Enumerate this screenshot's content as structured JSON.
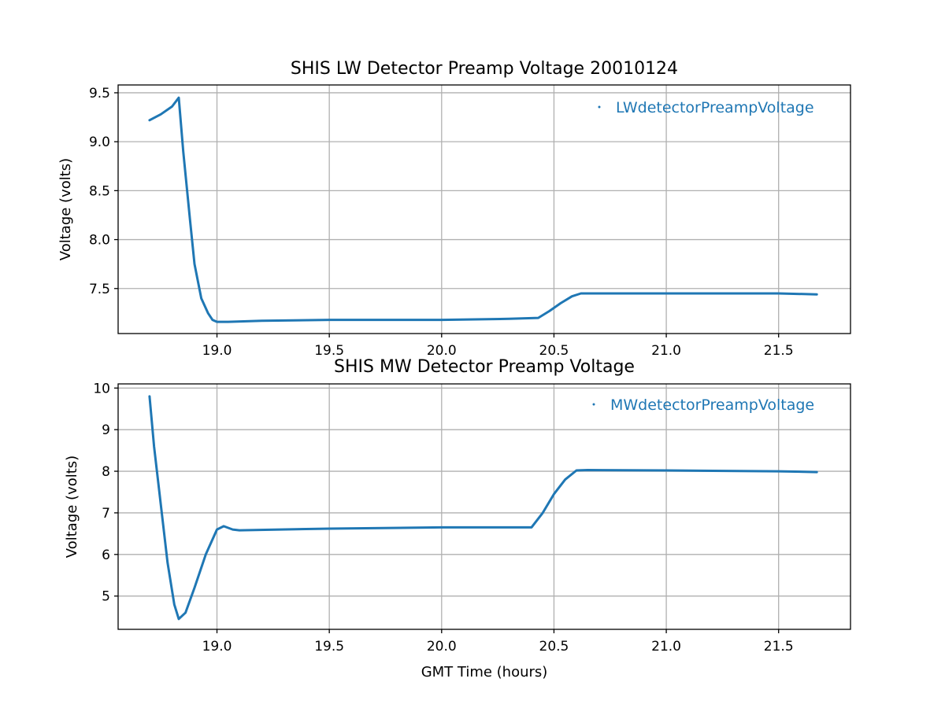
{
  "chart_data": [
    {
      "type": "scatter",
      "title": "SHIS LW Detector Preamp Voltage 20010124",
      "xlabel": "",
      "ylabel": "Voltage (volts)",
      "xlim": [
        18.56,
        21.82
      ],
      "ylim": [
        7.04,
        9.58
      ],
      "xticks": [
        19.0,
        19.5,
        20.0,
        20.5,
        21.0,
        21.5
      ],
      "xtick_labels": [
        "19.0",
        "19.5",
        "20.0",
        "20.5",
        "21.0",
        "21.5"
      ],
      "yticks": [
        7.5,
        8.0,
        8.5,
        9.0,
        9.5
      ],
      "ytick_labels": [
        "7.5",
        "8.0",
        "8.5",
        "9.0",
        "9.5"
      ],
      "grid": true,
      "legend_position": "upper-right",
      "series": [
        {
          "name": "LWdetectorPreampVoltage",
          "color": "#1f77b4",
          "x": [
            18.7,
            18.75,
            18.8,
            18.83,
            18.85,
            18.88,
            18.9,
            18.93,
            18.96,
            18.98,
            19.0,
            19.05,
            19.2,
            19.5,
            20.0,
            20.3,
            20.43,
            20.48,
            20.53,
            20.58,
            20.62,
            21.0,
            21.5,
            21.67
          ],
          "y": [
            9.22,
            9.28,
            9.36,
            9.45,
            8.9,
            8.2,
            7.75,
            7.4,
            7.25,
            7.18,
            7.16,
            7.16,
            7.17,
            7.18,
            7.18,
            7.19,
            7.2,
            7.27,
            7.35,
            7.42,
            7.45,
            7.45,
            7.45,
            7.44
          ]
        }
      ]
    },
    {
      "type": "scatter",
      "title": "SHIS MW Detector Preamp Voltage",
      "xlabel": "GMT Time (hours)",
      "ylabel": "Voltage (volts)",
      "xlim": [
        18.56,
        21.82
      ],
      "ylim": [
        4.2,
        10.1
      ],
      "xticks": [
        19.0,
        19.5,
        20.0,
        20.5,
        21.0,
        21.5
      ],
      "xtick_labels": [
        "19.0",
        "19.5",
        "20.0",
        "20.5",
        "21.0",
        "21.5"
      ],
      "yticks": [
        5,
        6,
        7,
        8,
        9,
        10
      ],
      "ytick_labels": [
        "5",
        "6",
        "7",
        "8",
        "9",
        "10"
      ],
      "grid": true,
      "legend_position": "upper-right",
      "series": [
        {
          "name": "MWdetectorPreampVoltage",
          "color": "#1f77b4",
          "x": [
            18.7,
            18.72,
            18.75,
            18.78,
            18.81,
            18.83,
            18.86,
            18.9,
            18.95,
            19.0,
            19.03,
            19.07,
            19.1,
            19.5,
            20.0,
            20.4,
            20.45,
            20.5,
            20.55,
            20.6,
            20.65,
            21.0,
            21.5,
            21.67
          ],
          "y": [
            9.8,
            8.6,
            7.2,
            5.8,
            4.8,
            4.45,
            4.6,
            5.2,
            6.0,
            6.6,
            6.68,
            6.6,
            6.58,
            6.62,
            6.65,
            6.65,
            7.0,
            7.45,
            7.8,
            8.02,
            8.03,
            8.02,
            8.0,
            7.98
          ]
        }
      ]
    }
  ]
}
